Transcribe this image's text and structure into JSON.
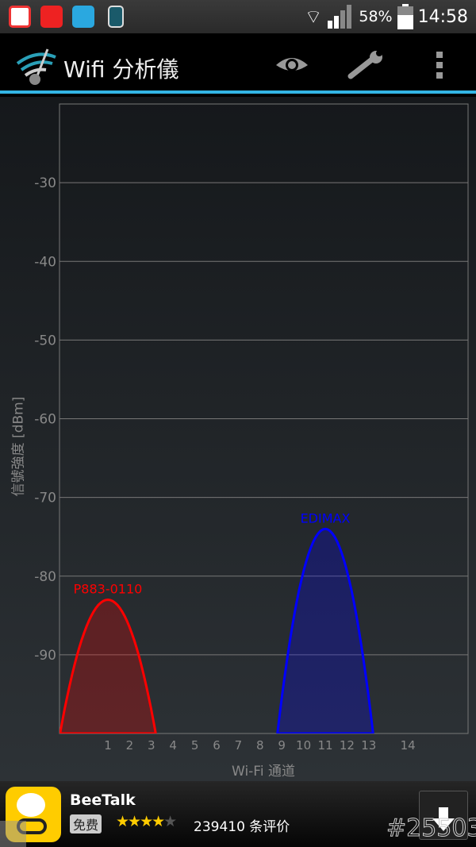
{
  "status_bar": {
    "battery": "58%",
    "time": "14:58",
    "icons": [
      "app-icon-1",
      "alarm-app-icon",
      "app-icon-3",
      "phone-icon",
      "wifi-icon",
      "signal-icon",
      "battery-icon"
    ]
  },
  "app_bar": {
    "title": "Wifi 分析儀",
    "actions": [
      "eye-icon",
      "wrench-icon",
      "overflow-menu-icon"
    ]
  },
  "chart_data": {
    "type": "area",
    "xlabel": "Wi-Fi 通道",
    "ylabel": "信號強度 [dBm]",
    "ylim": [
      -100,
      -20
    ],
    "yticks": [
      -30,
      -40,
      -50,
      -60,
      -70,
      -80,
      -90
    ],
    "xticks": [
      1,
      2,
      3,
      4,
      5,
      6,
      7,
      8,
      9,
      10,
      11,
      12,
      13,
      14
    ],
    "grid": true,
    "series": [
      {
        "name": "P883-0110",
        "channel": 1,
        "peak": -83,
        "color": "#ff0000"
      },
      {
        "name": "EDIMAX",
        "channel": 11,
        "peak": -74,
        "color": "#0000ff"
      }
    ]
  },
  "ad": {
    "app_name": "BeeTalk",
    "badge": "免费",
    "rating": 4,
    "reviews": "239410 条评价",
    "watermark": "#25503"
  }
}
